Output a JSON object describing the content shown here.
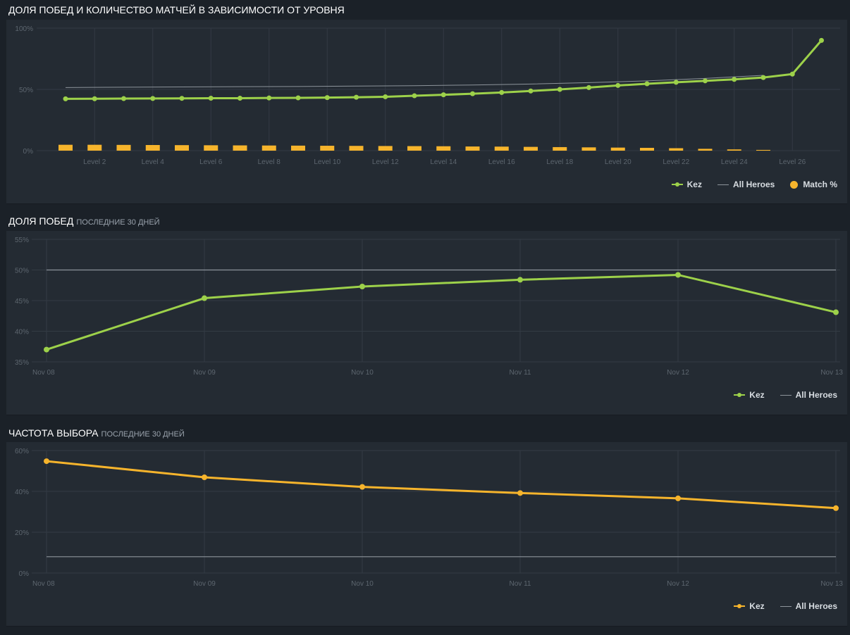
{
  "sections": [
    {
      "title": "Доля побед и количество матчей в зависимости от уровня",
      "subtitle": ""
    },
    {
      "title": "Доля побед",
      "subtitle": "последние 30 дней"
    },
    {
      "title": "Частота выбора",
      "subtitle": "последние 30 дней"
    }
  ],
  "colors": {
    "green": "#9dd14a",
    "orange": "#f6b42c",
    "gray": "#8d949b"
  },
  "chart_data": [
    {
      "type": "line",
      "x": [
        1,
        2,
        3,
        4,
        5,
        6,
        7,
        8,
        9,
        10,
        11,
        12,
        13,
        14,
        15,
        16,
        17,
        18,
        19,
        20,
        21,
        22,
        23,
        24,
        25,
        26,
        27
      ],
      "tick_labels": [
        "Level 2",
        "Level 4",
        "Level 6",
        "Level 8",
        "Level 10",
        "Level 12",
        "Level 14",
        "Level 16",
        "Level 18",
        "Level 20",
        "Level 22",
        "Level 24",
        "Level 26"
      ],
      "tick_values": [
        2,
        4,
        6,
        8,
        10,
        12,
        14,
        16,
        18,
        20,
        22,
        24,
        26
      ],
      "y_ticks": [
        "100%",
        "50%",
        "0%"
      ],
      "ylim": [
        0,
        100
      ],
      "series": [
        {
          "name": "Kez",
          "kind": "line-dots",
          "color": "#9dd14a",
          "x": [
            1,
            2,
            3,
            4,
            5,
            6,
            7,
            8,
            9,
            10,
            11,
            12,
            13,
            14,
            15,
            16,
            17,
            18,
            19,
            20,
            21,
            22,
            23,
            24,
            25,
            26,
            27
          ],
          "values": [
            42.3,
            42.4,
            42.5,
            42.6,
            42.7,
            42.8,
            42.8,
            43.0,
            43.1,
            43.3,
            43.6,
            44.0,
            44.8,
            45.6,
            46.5,
            47.5,
            48.7,
            50.0,
            51.5,
            53.2,
            54.6,
            55.8,
            57.0,
            58.2,
            59.7,
            62.5,
            90.0
          ]
        },
        {
          "name": "All Heroes",
          "kind": "line",
          "color": "#8d949b",
          "x": [
            1,
            3,
            5,
            7,
            9,
            11,
            13,
            15,
            17,
            19,
            21,
            23,
            25
          ],
          "values": [
            51.5,
            51.8,
            52.0,
            52.2,
            52.4,
            52.7,
            53.0,
            53.6,
            54.4,
            55.5,
            57.0,
            59.0,
            61.5
          ]
        },
        {
          "name": "Match %",
          "kind": "bar",
          "color": "#f6b42c",
          "x": [
            1,
            2,
            3,
            4,
            5,
            6,
            7,
            8,
            9,
            10,
            11,
            12,
            13,
            14,
            15,
            16,
            17,
            18,
            19,
            20,
            21,
            22,
            23,
            24,
            25
          ],
          "values": [
            4.8,
            4.8,
            4.7,
            4.6,
            4.5,
            4.4,
            4.3,
            4.2,
            4.1,
            4.0,
            3.9,
            3.8,
            3.7,
            3.6,
            3.4,
            3.3,
            3.1,
            2.9,
            2.7,
            2.5,
            2.3,
            2.0,
            1.5,
            1.0,
            0.6
          ]
        }
      ],
      "legend": [
        {
          "label": "Kez",
          "kind": "line-dot",
          "color": "#9dd14a"
        },
        {
          "label": "All Heroes",
          "kind": "line",
          "color": "#8d949b"
        },
        {
          "label": "Match %",
          "kind": "circle",
          "color": "#f6b42c"
        }
      ]
    },
    {
      "type": "line",
      "categories": [
        "Nov 08",
        "Nov 09",
        "Nov 10",
        "Nov 11",
        "Nov 12",
        "Nov 13"
      ],
      "y_ticks": [
        "55%",
        "50%",
        "45%",
        "40%",
        "35%"
      ],
      "ylim": [
        35,
        55
      ],
      "series": [
        {
          "name": "Kez",
          "kind": "line-dots",
          "color": "#9dd14a",
          "values": [
            37.0,
            45.4,
            47.3,
            48.4,
            49.2,
            43.1
          ]
        },
        {
          "name": "All Heroes",
          "kind": "line",
          "color": "#8d949b",
          "values": [
            50,
            50,
            50,
            50,
            50,
            50
          ]
        }
      ],
      "legend": [
        {
          "label": "Kez",
          "kind": "line-dot",
          "color": "#9dd14a"
        },
        {
          "label": "All Heroes",
          "kind": "line",
          "color": "#8d949b"
        }
      ]
    },
    {
      "type": "line",
      "categories": [
        "Nov 08",
        "Nov 09",
        "Nov 10",
        "Nov 11",
        "Nov 12",
        "Nov 13"
      ],
      "y_ticks": [
        "60%",
        "40%",
        "20%",
        "0%"
      ],
      "ylim": [
        0,
        60
      ],
      "series": [
        {
          "name": "Kez",
          "kind": "line-dots",
          "color": "#f6b42c",
          "values": [
            54.8,
            46.9,
            42.2,
            39.2,
            36.6,
            31.8
          ]
        },
        {
          "name": "All Heroes",
          "kind": "line",
          "color": "#8d949b",
          "values": [
            8,
            8,
            8,
            8,
            8,
            8
          ]
        }
      ],
      "legend": [
        {
          "label": "Kez",
          "kind": "line-dot",
          "color": "#f6b42c"
        },
        {
          "label": "All Heroes",
          "kind": "line",
          "color": "#8d949b"
        }
      ]
    }
  ]
}
